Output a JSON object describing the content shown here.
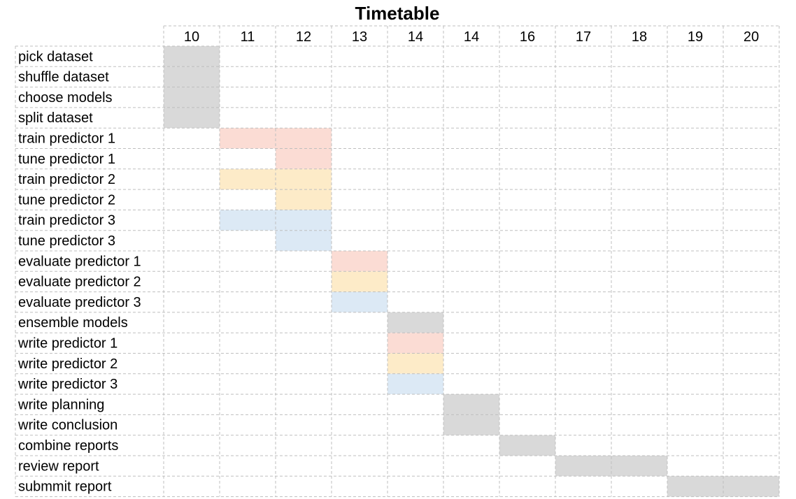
{
  "chart_data": {
    "type": "gantt",
    "title": "Timetable",
    "columns": [
      "10",
      "11",
      "12",
      "13",
      "14",
      "14",
      "16",
      "17",
      "18",
      "19",
      "20"
    ],
    "grid": true,
    "colors": {
      "gray": "#d9d9d9",
      "red": "#fbdcd4",
      "yellow": "#fdebc8",
      "blue": "#dce9f5",
      "grid": "#bfbfbf"
    },
    "tasks": [
      {
        "label": "pick dataset",
        "cells": [
          0
        ],
        "color": "gray"
      },
      {
        "label": "shuffle dataset",
        "cells": [
          0
        ],
        "color": "gray"
      },
      {
        "label": "choose models",
        "cells": [
          0
        ],
        "color": "gray"
      },
      {
        "label": "split dataset",
        "cells": [
          0
        ],
        "color": "gray"
      },
      {
        "label": "train predictor 1",
        "cells": [
          1,
          2
        ],
        "color": "red"
      },
      {
        "label": "tune predictor 1",
        "cells": [
          2
        ],
        "color": "red"
      },
      {
        "label": "train predictor 2",
        "cells": [
          1,
          2
        ],
        "color": "yellow"
      },
      {
        "label": "tune predictor 2",
        "cells": [
          2
        ],
        "color": "yellow"
      },
      {
        "label": "train predictor 3",
        "cells": [
          1,
          2
        ],
        "color": "blue"
      },
      {
        "label": "tune predictor 3",
        "cells": [
          2
        ],
        "color": "blue"
      },
      {
        "label": "evaluate predictor 1",
        "cells": [
          3
        ],
        "color": "red"
      },
      {
        "label": "evaluate predictor 2",
        "cells": [
          3
        ],
        "color": "yellow"
      },
      {
        "label": "evaluate predictor 3",
        "cells": [
          3
        ],
        "color": "blue"
      },
      {
        "label": "ensemble models",
        "cells": [
          4
        ],
        "color": "gray"
      },
      {
        "label": "write predictor 1",
        "cells": [
          4
        ],
        "color": "red"
      },
      {
        "label": "write predictor 2",
        "cells": [
          4
        ],
        "color": "yellow"
      },
      {
        "label": "write predictor 3",
        "cells": [
          4
        ],
        "color": "blue"
      },
      {
        "label": "write planning",
        "cells": [
          5
        ],
        "color": "gray"
      },
      {
        "label": "write conclusion",
        "cells": [
          5
        ],
        "color": "gray"
      },
      {
        "label": "combine reports",
        "cells": [
          6
        ],
        "color": "gray"
      },
      {
        "label": "review report",
        "cells": [
          7,
          8
        ],
        "color": "gray"
      },
      {
        "label": "submmit report",
        "cells": [
          9,
          10
        ],
        "color": "gray"
      }
    ]
  }
}
